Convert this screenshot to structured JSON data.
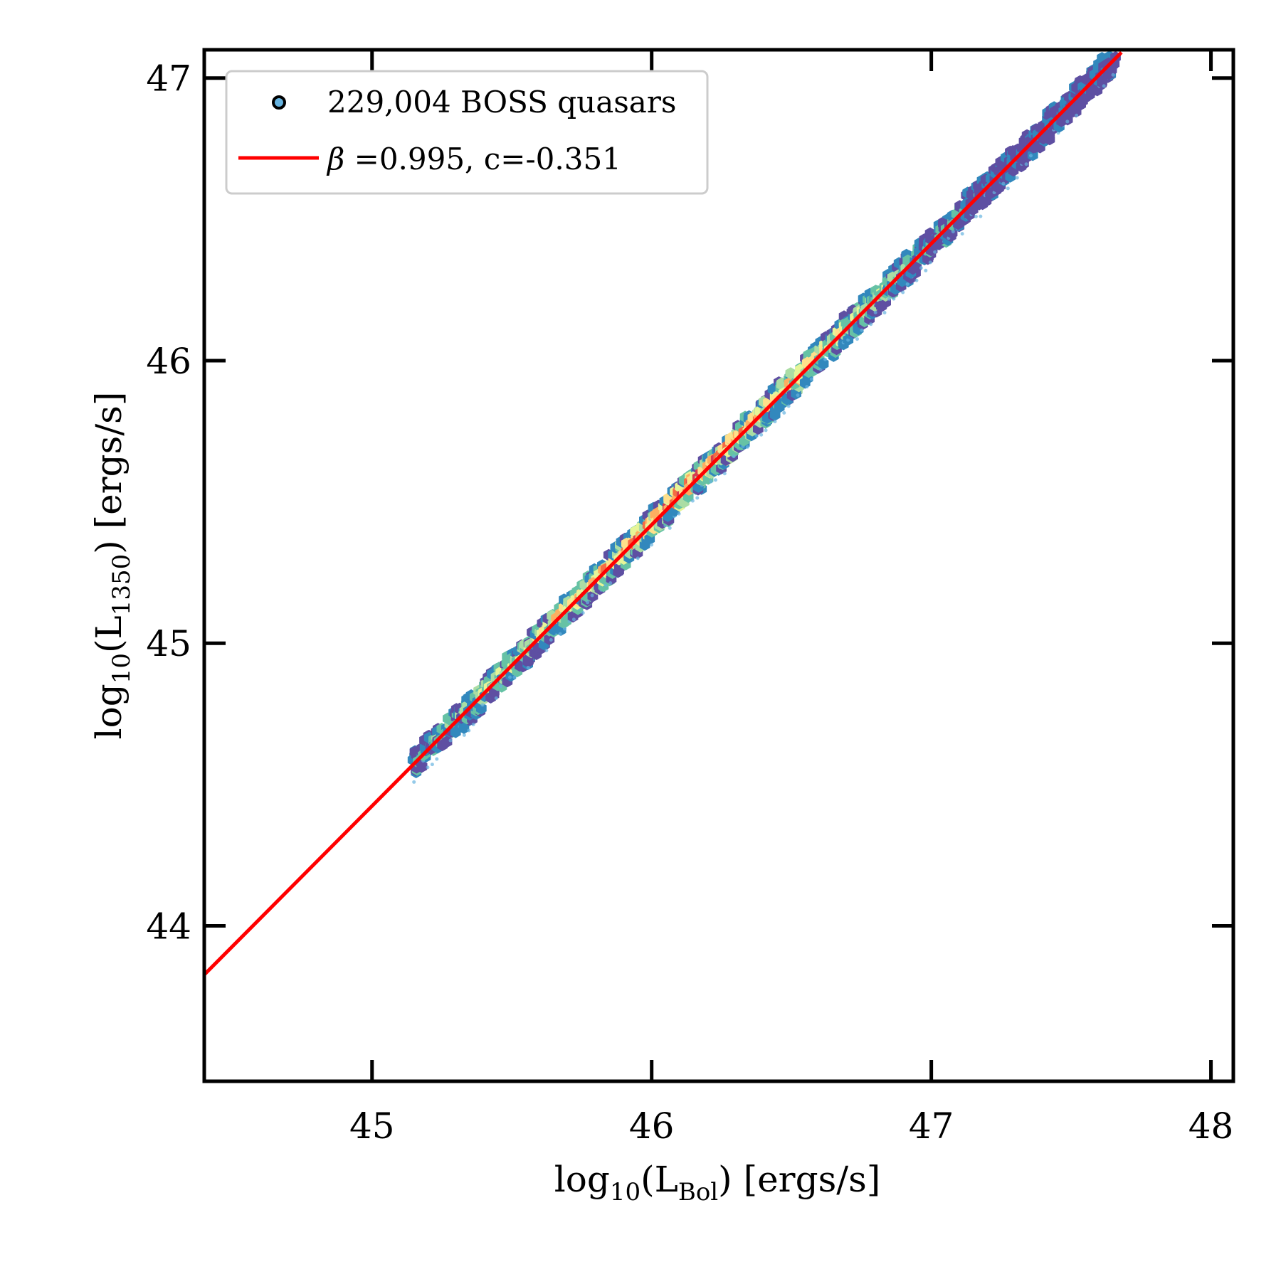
{
  "chart_data": {
    "type": "scatter",
    "title": "",
    "xlabel": {
      "prefix": "log",
      "log_sub": "10",
      "open": "(L",
      "l_sub": "Bol",
      "close": ") [ergs/s]"
    },
    "ylabel": {
      "prefix": "log",
      "log_sub": "10",
      "open": "(L",
      "l_sub": "1350",
      "close": ") [ergs/s]"
    },
    "xlim": [
      44.4,
      48.08
    ],
    "ylim": [
      43.45,
      47.1
    ],
    "xticks": [
      45,
      46,
      47,
      48
    ],
    "yticks": [
      44,
      45,
      46,
      47
    ],
    "xtick_labels": [
      "45",
      "46",
      "47",
      "48"
    ],
    "ytick_labels": [
      "44",
      "45",
      "46",
      "47"
    ],
    "grid": false,
    "legend_position": "top-left",
    "series": [
      {
        "name": "229,004 BOSS quasars",
        "kind": "hexbin-density",
        "x_range": [
          45.15,
          47.65
        ],
        "relation": {
          "slope": 0.995,
          "intercept": -0.351
        },
        "colormap": [
          "#5e4fa2",
          "#3288bd",
          "#66c2a5",
          "#abdda4",
          "#e6f598",
          "#fee08b",
          "#fdae61",
          "#f46d43",
          "#d53e4f"
        ],
        "marker_color": "#66b3e0"
      },
      {
        "name": "β =0.995, c=-0.351",
        "name_parts": {
          "symbol": "β",
          "rest": " =0.995, c=-0.351"
        },
        "kind": "line",
        "color": "#ff0000",
        "slope": 0.995,
        "intercept": -0.351,
        "x": [
          44.4,
          47.68
        ],
        "y": [
          43.827,
          47.091
        ]
      }
    ]
  }
}
